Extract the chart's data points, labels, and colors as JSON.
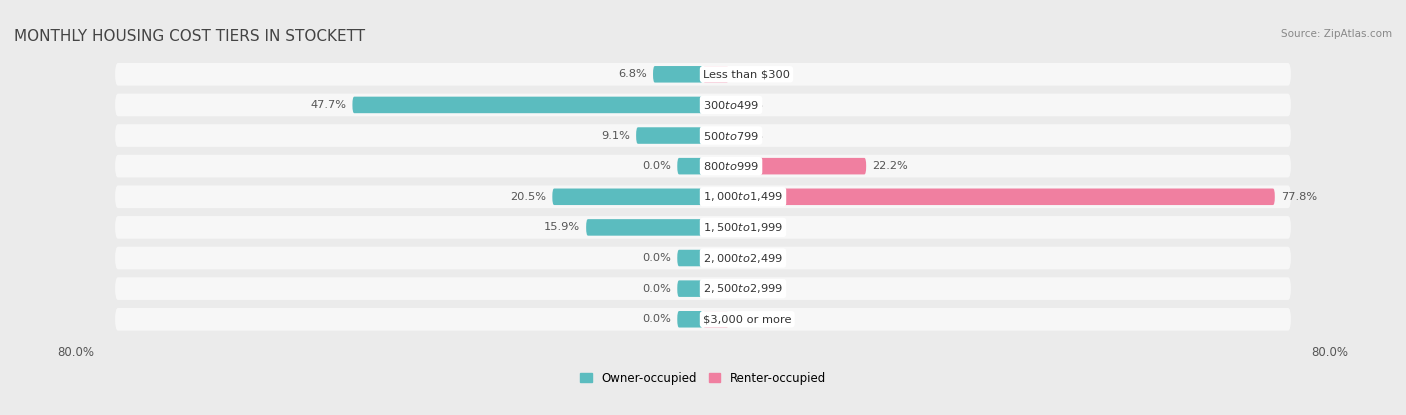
{
  "title": "MONTHLY HOUSING COST TIERS IN STOCKETT",
  "source": "Source: ZipAtlas.com",
  "categories": [
    "Less than $300",
    "$300 to $499",
    "$500 to $799",
    "$800 to $999",
    "$1,000 to $1,499",
    "$1,500 to $1,999",
    "$2,000 to $2,499",
    "$2,500 to $2,999",
    "$3,000 or more"
  ],
  "owner_values": [
    6.8,
    47.7,
    9.1,
    0.0,
    20.5,
    15.9,
    0.0,
    0.0,
    0.0
  ],
  "renter_values": [
    0.0,
    0.0,
    0.0,
    22.2,
    77.8,
    0.0,
    0.0,
    0.0,
    0.0
  ],
  "owner_color": "#5bbcbf",
  "renter_color": "#f07fa0",
  "axis_label_left": "80.0%",
  "axis_label_right": "80.0%",
  "max_val": 80.0,
  "min_stub": 3.5,
  "background_color": "#ebebeb",
  "row_bg_color": "#f7f7f7",
  "title_color": "#444444",
  "source_color": "#888888",
  "value_color": "#555555"
}
